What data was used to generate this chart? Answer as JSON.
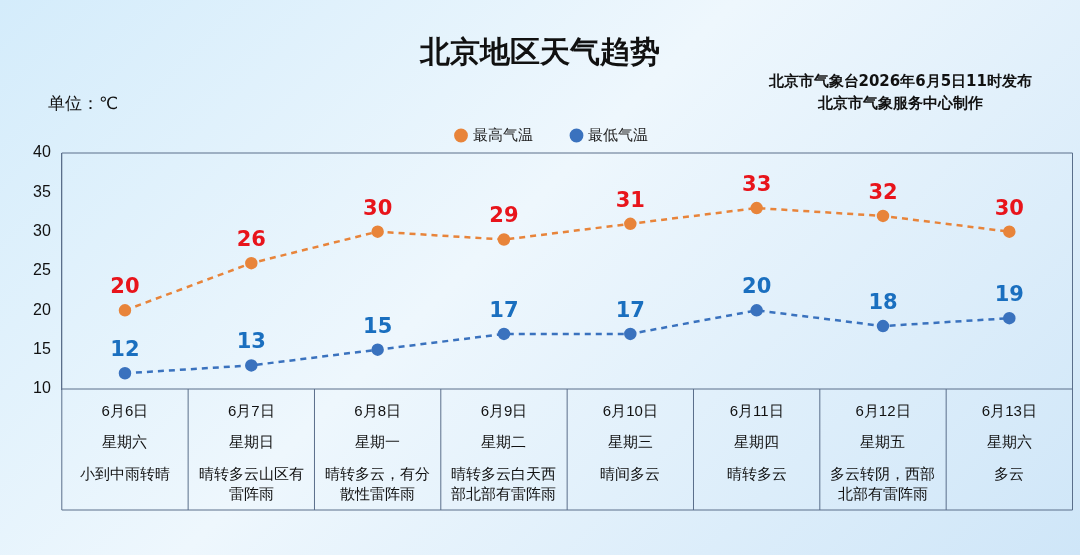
{
  "chart_data": {
    "type": "line",
    "title": "北京地区天气趋势",
    "ylabel": "单位：℃",
    "annotations": [
      "北京市气象台2026年6月5日11时发布",
      "北京市气象服务中心制作",
      "星期六",
      "星期日",
      "星期一",
      "星期二",
      "星期三",
      "星期四",
      "星期五",
      "星期六",
      "小到中雨转晴",
      "晴转多云山区有雷阵雨",
      "晴转多云，有分散性雷阵雨",
      "晴转多云白天西部北部有雷阵雨",
      "晴间多云",
      "晴转多云",
      "多云转阴，西部北部有雷阵雨",
      "多云"
    ],
    "categories": [
      "6月6日",
      "6月7日",
      "6月8日",
      "6月9日",
      "6月10日",
      "6月11日",
      "6月12日",
      "6月13日"
    ],
    "series": [
      {
        "name": "最高气温",
        "color": "#e8843a",
        "values": [
          20,
          26,
          30,
          29,
          31,
          33,
          32,
          30
        ]
      },
      {
        "name": "最低气温",
        "color": "#3a72be",
        "values": [
          12,
          13,
          15,
          17,
          17,
          20,
          18,
          19
        ]
      }
    ],
    "ylim": [
      10,
      40
    ],
    "yticks": [
      10,
      15,
      20,
      25,
      30,
      35,
      40
    ],
    "grid": false,
    "legend": "top",
    "marker": "circle",
    "line_style": "dashed",
    "data_labels": true
  }
}
